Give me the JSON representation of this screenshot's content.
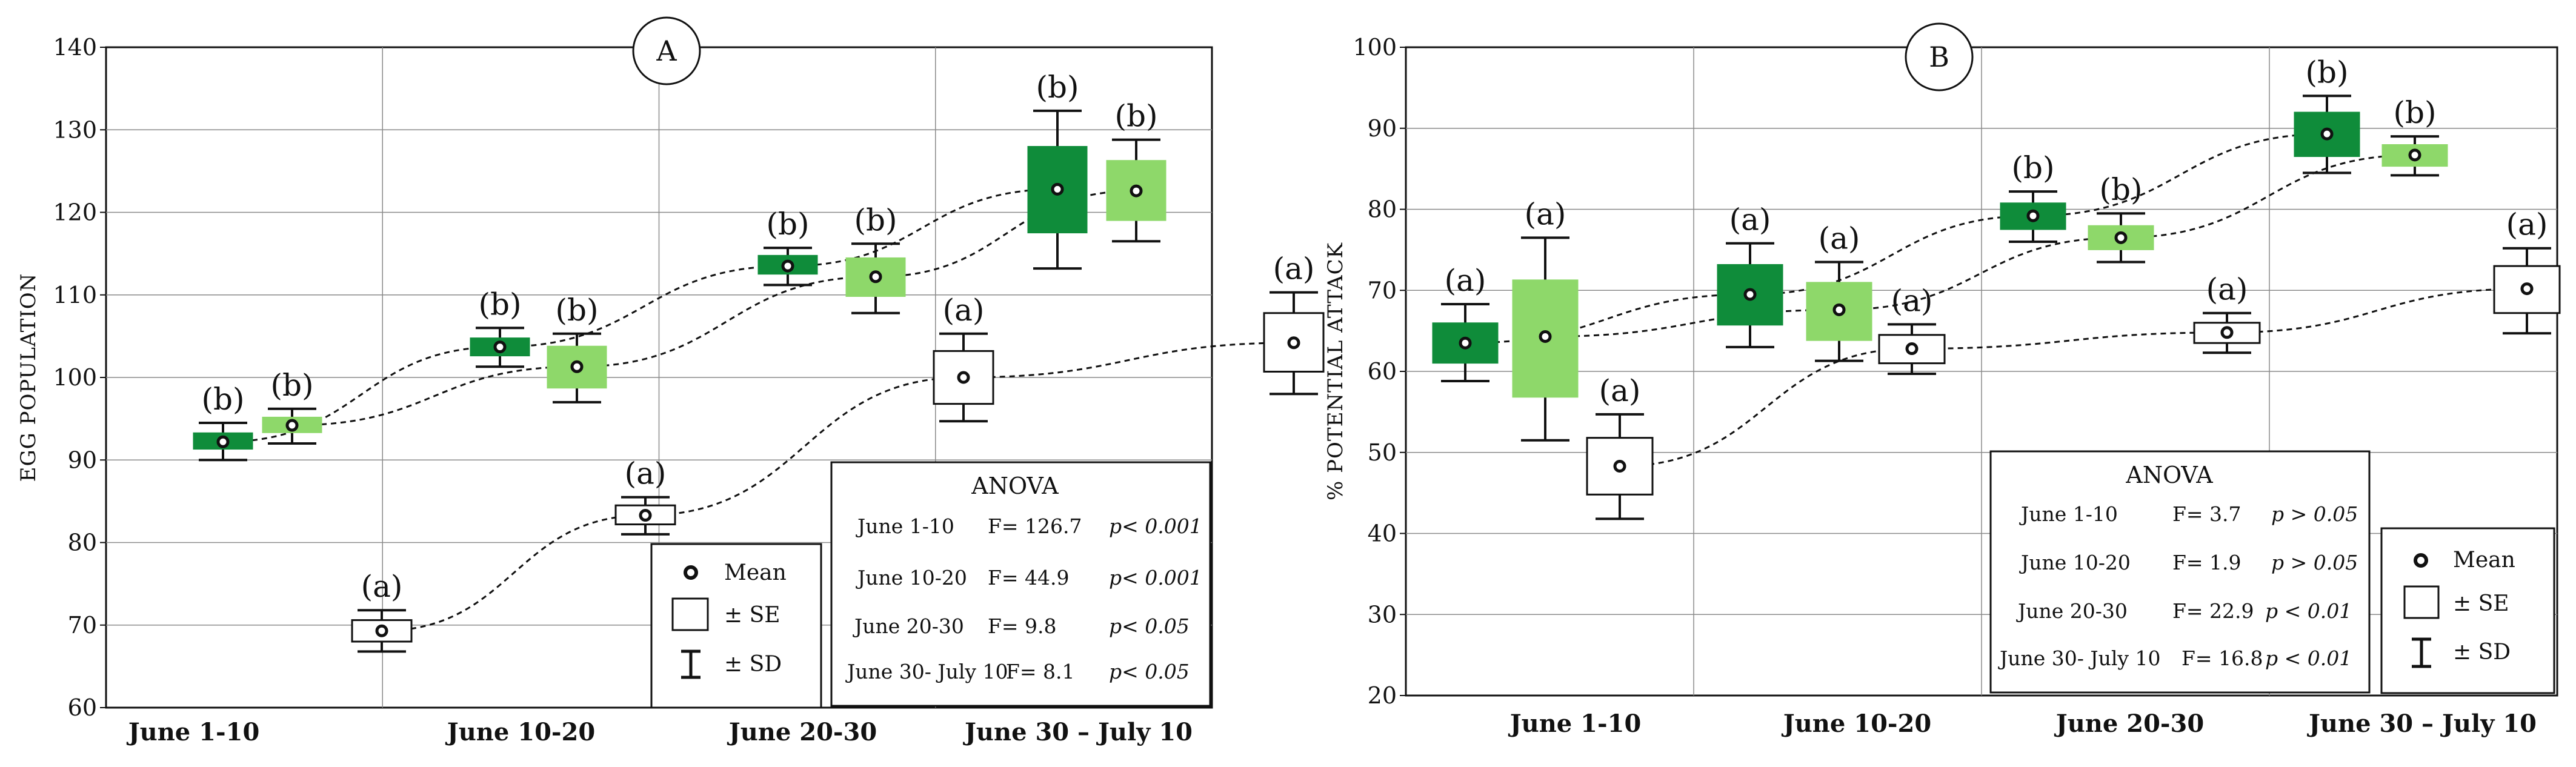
{
  "colors": {
    "dark_green": "#0f8c3a",
    "light_green": "#8ed86a",
    "white_box": "#ffffff",
    "grid": "#8a8a8a",
    "ink": "#111111"
  },
  "chart_data": [
    {
      "type": "box",
      "panel": "A",
      "title": "",
      "xlabel": "",
      "ylabel": "EGG POPULATION",
      "ylim": [
        60,
        140
      ],
      "yticks": [
        "60",
        "70",
        "80",
        "90",
        "100",
        "110",
        "120",
        "130",
        "140"
      ],
      "categories": [
        "June 1-10",
        "June 10-20",
        "June 20-30",
        "June 30 – July 10"
      ],
      "series": [
        {
          "name": "dark green",
          "color": "#0f8c3a",
          "trend_line": true,
          "points": [
            {
              "mean": 92.2,
              "se_low": 91.3,
              "se_high": 93.3,
              "sd_low": 90.0,
              "sd_high": 94.5,
              "sig": "(b)"
            },
            {
              "mean": 103.7,
              "se_low": 102.6,
              "se_high": 104.8,
              "sd_low": 101.3,
              "sd_high": 106.0,
              "sig": "(b)"
            },
            {
              "mean": 113.5,
              "se_low": 112.5,
              "se_high": 114.8,
              "sd_low": 111.2,
              "sd_high": 115.7,
              "sig": "(b)"
            },
            {
              "mean": 122.8,
              "se_low": 117.5,
              "se_high": 128.0,
              "sd_low": 113.2,
              "sd_high": 132.3,
              "sig": "(b)"
            }
          ]
        },
        {
          "name": "light green",
          "color": "#8ed86a",
          "trend_line": true,
          "points": [
            {
              "mean": 94.2,
              "se_low": 93.3,
              "se_high": 95.2,
              "sd_low": 92.0,
              "sd_high": 96.2,
              "sig": "(b)"
            },
            {
              "mean": 101.3,
              "se_low": 98.7,
              "se_high": 103.8,
              "sd_low": 97.0,
              "sd_high": 105.3,
              "sig": "(b)"
            },
            {
              "mean": 112.2,
              "se_low": 109.8,
              "se_high": 114.5,
              "sd_low": 107.8,
              "sd_high": 116.2,
              "sig": "(b)"
            },
            {
              "mean": 122.6,
              "se_low": 119.0,
              "se_high": 126.3,
              "sd_low": 116.5,
              "sd_high": 128.8,
              "sig": "(b)"
            }
          ]
        },
        {
          "name": "white",
          "color": "#ffffff",
          "trend_line": true,
          "points": [
            {
              "mean": 69.3,
              "se_low": 68.0,
              "se_high": 70.6,
              "sd_low": 66.8,
              "sd_high": 71.8,
              "sig": "(a)"
            },
            {
              "mean": 83.3,
              "se_low": 82.2,
              "se_high": 84.5,
              "sd_low": 81.0,
              "sd_high": 85.5,
              "sig": "(a)"
            },
            {
              "mean": 100.0,
              "se_low": 96.8,
              "se_high": 103.2,
              "sd_low": 94.7,
              "sd_high": 105.3,
              "sig": "(a)"
            },
            {
              "mean": 104.2,
              "se_low": 100.7,
              "se_high": 107.8,
              "sd_low": 98.0,
              "sd_high": 110.3,
              "sig": "(a)"
            }
          ]
        }
      ],
      "anova": {
        "title": "ANOVA",
        "rows": [
          {
            "period": "June 1-10",
            "f": "F= 126.7",
            "p": "p< 0.001"
          },
          {
            "period": "June 10-20",
            "f": "F= 44.9",
            "p": "p< 0.001"
          },
          {
            "period": "June 20-30",
            "f": "F= 9.8",
            "p": "p< 0.05"
          },
          {
            "period": "June 30- July 10",
            "f": "F= 8.1",
            "p": "p< 0.05"
          }
        ]
      },
      "legend": {
        "mean": "Mean",
        "se": "± SE",
        "sd": "± SD"
      }
    },
    {
      "type": "box",
      "panel": "B",
      "title": "",
      "xlabel": "",
      "ylabel": "% POTENTIAL ATTACK",
      "ylim": [
        20,
        100
      ],
      "yticks": [
        "20",
        "30",
        "40",
        "50",
        "60",
        "70",
        "80",
        "90",
        "100"
      ],
      "categories": [
        "June 1-10",
        "June 10-20",
        "June 20-30",
        "June 30 – July 10"
      ],
      "series": [
        {
          "name": "dark green",
          "color": "#0f8c3a",
          "trend_line": true,
          "points": [
            {
              "mean": 63.5,
              "se_low": 61.0,
              "se_high": 66.0,
              "sd_low": 58.8,
              "sd_high": 68.3,
              "sig": "(a)"
            },
            {
              "mean": 69.5,
              "se_low": 65.7,
              "se_high": 73.2,
              "sd_low": 63.0,
              "sd_high": 75.8,
              "sig": "(a)"
            },
            {
              "mean": 79.2,
              "se_low": 77.5,
              "se_high": 80.8,
              "sd_low": 76.0,
              "sd_high": 82.2,
              "sig": "(b)"
            },
            {
              "mean": 89.3,
              "se_low": 86.5,
              "se_high": 92.0,
              "sd_low": 84.5,
              "sd_high": 94.0,
              "sig": "(b)"
            }
          ]
        },
        {
          "name": "light green",
          "color": "#8ed86a",
          "trend_line": true,
          "points": [
            {
              "mean": 64.3,
              "se_low": 56.8,
              "se_high": 71.3,
              "sd_low": 51.5,
              "sd_high": 76.5,
              "sig": "(a)"
            },
            {
              "mean": 67.6,
              "se_low": 63.8,
              "se_high": 71.0,
              "sd_low": 61.3,
              "sd_high": 73.5,
              "sig": "(a)"
            },
            {
              "mean": 76.5,
              "se_low": 75.0,
              "se_high": 78.0,
              "sd_low": 73.5,
              "sd_high": 79.5,
              "sig": "(b)"
            },
            {
              "mean": 86.7,
              "se_low": 85.3,
              "se_high": 88.0,
              "sd_low": 84.2,
              "sd_high": 89.0,
              "sig": "(b)"
            }
          ]
        },
        {
          "name": "white",
          "color": "#ffffff",
          "trend_line": true,
          "points": [
            {
              "mean": 48.3,
              "se_low": 44.8,
              "se_high": 51.8,
              "sd_low": 41.8,
              "sd_high": 54.7,
              "sig": "(a)"
            },
            {
              "mean": 62.8,
              "se_low": 61.0,
              "se_high": 64.5,
              "sd_low": 59.7,
              "sd_high": 65.8,
              "sig": "(a)"
            },
            {
              "mean": 64.8,
              "se_low": 63.5,
              "se_high": 66.0,
              "sd_low": 62.3,
              "sd_high": 67.2,
              "sig": "(a)"
            },
            {
              "mean": 70.2,
              "se_low": 67.2,
              "se_high": 73.0,
              "sd_low": 64.7,
              "sd_high": 75.2,
              "sig": "(a)"
            }
          ]
        }
      ],
      "anova": {
        "title": "ANOVA",
        "rows": [
          {
            "period": "June 1-10",
            "f": "F= 3.7",
            "p": "p > 0.05"
          },
          {
            "period": "June 10-20",
            "f": "F= 1.9",
            "p": "p > 0.05"
          },
          {
            "period": "June 20-30",
            "f": "F= 22.9",
            "p": "p < 0.01"
          },
          {
            "period": "June 30- July 10",
            "f": "F= 16.8",
            "p": "p < 0.01"
          }
        ]
      },
      "legend": {
        "mean": "Mean",
        "se": "± SE",
        "sd": "± SD"
      }
    }
  ]
}
